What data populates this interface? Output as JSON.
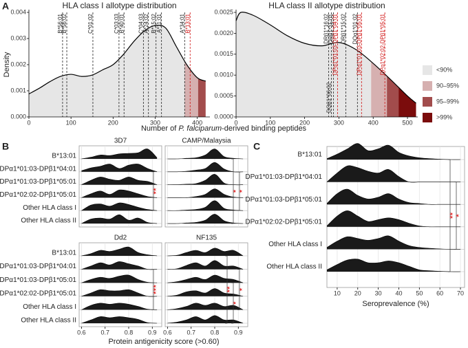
{
  "chart_data": [
    {
      "type": "density",
      "panel_label": "A",
      "title": "HLA class I allotype distribution",
      "y_label": "Density",
      "x_label": [
        "Number of ",
        "P. falciparum",
        "-derived binding peptides"
      ],
      "x": [
        0,
        25,
        50,
        75,
        100,
        125,
        150,
        175,
        200,
        225,
        250,
        275,
        300,
        325,
        350,
        375,
        400,
        420
      ],
      "values": [
        0.00088,
        0.0011,
        0.00135,
        0.00155,
        0.00163,
        0.00155,
        0.0016,
        0.0018,
        0.002,
        0.0024,
        0.0029,
        0.0033,
        0.0035,
        0.0034,
        0.0027,
        0.002,
        0.0015,
        0.00137
      ],
      "quantile_breaks": [
        370,
        402
      ],
      "xlim": [
        0,
        430
      ],
      "xticks": [
        0,
        100,
        200,
        300,
        400
      ],
      "ylim": [
        0,
        0.004
      ],
      "yticks": [
        {
          "value": 0,
          "label": "0.000"
        },
        {
          "value": 0.001,
          "label": "0.001"
        },
        {
          "value": 0.002,
          "label": "0.002"
        },
        {
          "value": 0.003,
          "label": "0.003"
        },
        {
          "value": 0.004,
          "label": "0.004"
        }
      ],
      "markers": [
        {
          "label": "B*56:01",
          "x": 80,
          "color": "#222222"
        },
        {
          "label": "B*56:02",
          "x": 90,
          "color": "#222222"
        },
        {
          "label": "C*01:02",
          "x": 152,
          "color": "#222222"
        },
        {
          "label": "C*03:03",
          "x": 214,
          "color": "#222222"
        },
        {
          "label": "B*40:01",
          "x": 226,
          "color": "#222222"
        },
        {
          "label": "C*04:03",
          "x": 272,
          "color": "#222222"
        },
        {
          "label": "A*24:02",
          "x": 284,
          "color": "#222222"
        },
        {
          "label": "B*15:02",
          "x": 302,
          "color": "#222222"
        },
        {
          "label": "A*11:01",
          "x": 315,
          "color": "#222222"
        },
        {
          "label": "A*34:01",
          "x": 370,
          "color": "#222222"
        },
        {
          "label": "B*13:01",
          "x": 383,
          "color": "#d01010"
        }
      ]
    },
    {
      "type": "density",
      "title": "HLA class II allotype distribution",
      "x": [
        0,
        14,
        50,
        100,
        150,
        200,
        250,
        300,
        350,
        400,
        450,
        500,
        525
      ],
      "values": [
        0.0023,
        0.0025,
        0.00243,
        0.0022,
        0.00194,
        0.00176,
        0.0017,
        0.00178,
        0.00161,
        0.00128,
        0.0009,
        0.0005,
        0.00033
      ],
      "quantile_breaks": [
        394,
        440,
        474
      ],
      "xlim": [
        0,
        530
      ],
      "xticks": [
        0,
        100,
        200,
        300,
        400,
        500
      ],
      "ylim": [
        0,
        0.0025
      ],
      "yticks": [
        {
          "value": 0,
          "label": "0.0000"
        },
        {
          "value": 0.0005,
          "label": "0.0005"
        },
        {
          "value": 0.001,
          "label": "0.0010"
        },
        {
          "value": 0.0015,
          "label": "0.0015"
        },
        {
          "value": 0.002,
          "label": "0.0020"
        },
        {
          "value": 0.0025,
          "label": "0.0025"
        }
      ],
      "markers": [
        {
          "label": "DRβ1*16:02",
          "x": 270,
          "color": "#222222"
        },
        {
          "label": "DQβ1*06:02",
          "x": 278,
          "color": "#222222"
        },
        {
          "label": "DRβ1*15:01",
          "x": 284,
          "color": "#222222"
        },
        {
          "label": "DPα1*01:03-DPβ1*04:01",
          "x": 296,
          "color": "#d01010"
        },
        {
          "label": "DRβ1*15:02",
          "x": 320,
          "color": "#222222"
        },
        {
          "label": "DQα1*01:02",
          "x": 354,
          "color": "#222222"
        },
        {
          "label": "DPα1*01:03-DPβ1*05:01",
          "x": 366,
          "color": "#d01010"
        },
        {
          "label": "DPα1*02:02-DPβ1*05:01",
          "x": 434,
          "color": "#d01010"
        }
      ],
      "legend": [
        {
          "name": "<90%",
          "color": "#e6e6e6"
        },
        {
          "name": "90–95%",
          "color": "#d6b0b0"
        },
        {
          "name": "95–99%",
          "color": "#a24c4c"
        },
        {
          "name": ">99%",
          "color": "#7b0c0c"
        }
      ]
    },
    {
      "type": "ridgeline-facets",
      "panel_label": "B",
      "x_label": "Protein antigenicity score (>0.60)",
      "xlim": [
        0.59,
        0.94
      ],
      "xticks": [
        0.6,
        0.7,
        0.8,
        0.9
      ],
      "x": [
        0.6,
        0.64,
        0.68,
        0.72,
        0.76,
        0.8,
        0.84,
        0.88,
        0.92
      ],
      "categories": [
        "B*13:01",
        "DPα1*01:03-DPβ1*04:01",
        "DPα1*01:03-DPβ1*05:01",
        "DPα1*02:02-DPβ1*05:01",
        "Other HLA class I",
        "Other HLA class II"
      ],
      "color": "#1a1a1a",
      "facets": [
        {
          "title": "3D7",
          "rows": [
            [
              0,
              0.15,
              0.35,
              0.3,
              0.45,
              0.5,
              0.55,
              0.9,
              0.1
            ],
            [
              0.1,
              0.35,
              0.5,
              0.7,
              0.3,
              0.6,
              0.7,
              0.3,
              0
            ],
            [
              0,
              0.4,
              0.7,
              0.5,
              0.4,
              0.7,
              0.4,
              0.3,
              0
            ],
            [
              0,
              0.35,
              0.6,
              0.3,
              0.7,
              0.6,
              0.35,
              0.1,
              0
            ],
            [
              0,
              0.5,
              0.6,
              0.4,
              0.7,
              0.55,
              0.3,
              0.1,
              0
            ],
            [
              0,
              0.4,
              0.5,
              0.4,
              0.8,
              0.3,
              0.5,
              0.1,
              0
            ]
          ],
          "significance": [
            {
              "from": "DPα1*01:03-DPβ1*04:01",
              "to": "Other HLA class I",
              "label": "**"
            }
          ]
        },
        {
          "title": "CAMP/Malaysia",
          "rows": [
            [
              0,
              0,
              0.05,
              0.1,
              0.35,
              0.9,
              0.2,
              0.05,
              0
            ],
            [
              0,
              0,
              0.05,
              0.15,
              0.3,
              0.85,
              0.25,
              0,
              0
            ],
            [
              0,
              0,
              0.05,
              0.1,
              0.4,
              0.95,
              0.15,
              0,
              0
            ],
            [
              0,
              0,
              0,
              0.1,
              0.3,
              0.8,
              0.3,
              0.05,
              0
            ],
            [
              0,
              0,
              0.05,
              0.1,
              0.3,
              0.9,
              0.2,
              0.05,
              0
            ],
            [
              0,
              0,
              0.05,
              0.1,
              0.3,
              0.85,
              0.25,
              0.05,
              0
            ]
          ],
          "significance": [
            {
              "from": "DPα1*01:03-DPβ1*04:01",
              "to": "Other HLA class I",
              "label": "*"
            },
            {
              "from": "B*13:01",
              "to": "Other HLA class II",
              "label": "*"
            }
          ]
        },
        {
          "title": "Dd2",
          "rows": [
            [
              0,
              0.2,
              0.5,
              0.4,
              0.6,
              0.8,
              0.3,
              0.1,
              0
            ],
            [
              0,
              0.3,
              0.6,
              0.4,
              0.7,
              0.5,
              0.3,
              0,
              0
            ],
            [
              0,
              0.3,
              0.5,
              0.4,
              0.6,
              0.7,
              0.3,
              0.05,
              0
            ],
            [
              0,
              0.3,
              0.6,
              0.5,
              0.5,
              0.6,
              0.3,
              0,
              0
            ],
            [
              0,
              0.4,
              0.6,
              0.5,
              0.6,
              0.5,
              0.3,
              0.05,
              0
            ],
            [
              0,
              0.3,
              0.6,
              0.5,
              0.6,
              0.5,
              0.35,
              0.05,
              0
            ]
          ],
          "significance": [
            {
              "from": "DPα1*01:03-DPβ1*04:01",
              "to": "Other HLA class I",
              "label": "***"
            }
          ]
        },
        {
          "title": "NF135",
          "rows": [
            [
              0,
              0.05,
              0.3,
              0.5,
              0.3,
              0.7,
              0.4,
              0.5,
              0
            ],
            [
              0,
              0.05,
              0.35,
              0.6,
              0.3,
              0.8,
              0.3,
              0.3,
              0
            ],
            [
              0,
              0.1,
              0.3,
              0.5,
              0.3,
              0.7,
              0.4,
              0.3,
              0
            ],
            [
              0,
              0.1,
              0.4,
              0.5,
              0.3,
              0.7,
              0.3,
              0.2,
              0
            ],
            [
              0,
              0.1,
              0.3,
              0.6,
              0.4,
              0.6,
              0.3,
              0.4,
              0
            ],
            [
              0,
              0.1,
              0.3,
              0.6,
              0.3,
              0.7,
              0.3,
              0.3,
              0
            ]
          ],
          "significance": [
            {
              "from": "DPα1*01:03-DPβ1*04:01",
              "to": "Other HLA class I",
              "label": "*"
            },
            {
              "from": "DPα1*01:03-DPβ1*05:01",
              "to": "Other HLA class II",
              "label": "*"
            },
            {
              "from": "B*13:01",
              "to": "Other HLA class II",
              "label": "**"
            }
          ]
        }
      ]
    },
    {
      "type": "ridgeline",
      "panel_label": "C",
      "x_label": "Seroprevalence (%)",
      "xlim": [
        5,
        72
      ],
      "xticks": [
        10,
        20,
        30,
        40,
        50,
        60,
        70
      ],
      "x": [
        5,
        10,
        15,
        20,
        25,
        30,
        35,
        40,
        45,
        50,
        55,
        60,
        65,
        70
      ],
      "categories": [
        "B*13:01",
        "DPα1*01:03-DPβ1*04:01",
        "DPα1*01:03-DPβ1*05:01",
        "DPα1*02:02-DPβ1*05:01",
        "Other HLA class I",
        "Other HLA class II"
      ],
      "color": "#1a1a1a",
      "rows": [
        [
          0.05,
          0.3,
          0.6,
          0.9,
          0.5,
          0.6,
          0.8,
          0.4,
          0.2,
          0.1,
          0.05,
          0.02,
          0,
          0
        ],
        [
          0,
          0.5,
          0.9,
          0.8,
          0.6,
          0.5,
          0.7,
          0.3,
          0,
          0,
          0,
          0,
          0,
          0
        ],
        [
          0.05,
          0.6,
          0.85,
          0.5,
          0.3,
          0.4,
          0.6,
          0.3,
          0.1,
          0.05,
          0,
          0,
          0,
          0
        ],
        [
          0.05,
          0.6,
          0.9,
          0.6,
          0.3,
          0.4,
          0.5,
          0.4,
          0.2,
          0.05,
          0,
          0,
          0,
          0
        ],
        [
          0.1,
          0.45,
          0.7,
          0.6,
          0.5,
          0.6,
          0.75,
          0.45,
          0.2,
          0.1,
          0.05,
          0.02,
          0,
          0
        ],
        [
          0.1,
          0.4,
          0.65,
          0.7,
          0.5,
          0.5,
          0.6,
          0.5,
          0.3,
          0.1,
          0.05,
          0.02,
          0,
          0
        ]
      ],
      "significance": [
        {
          "from": "DPα1*01:03-DPβ1*04:01",
          "to": "Other HLA class I",
          "label": "*"
        },
        {
          "from": "B*13:01",
          "to": "Other HLA class II",
          "label": "**"
        }
      ]
    }
  ]
}
